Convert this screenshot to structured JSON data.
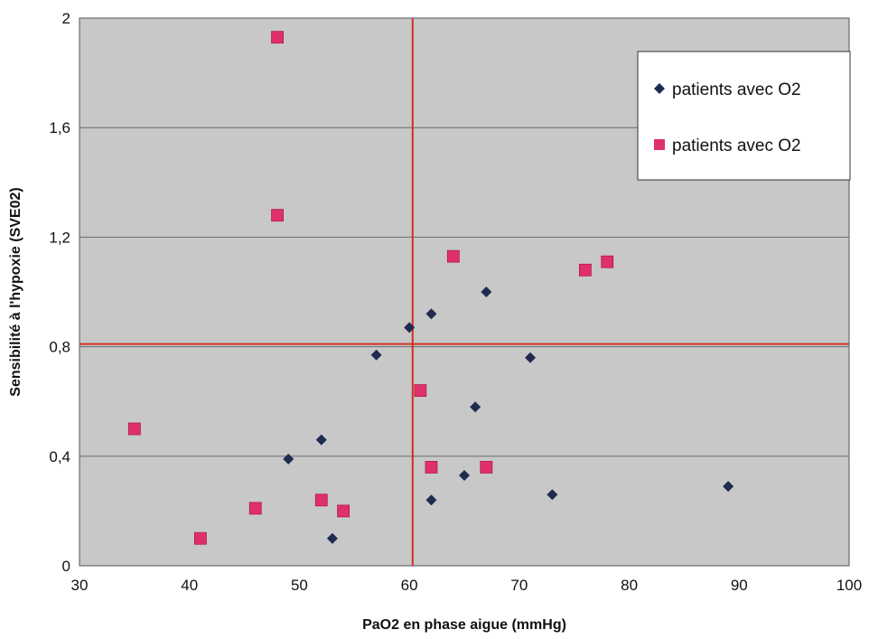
{
  "chart_data": {
    "type": "scatter",
    "xlabel": "PaO2 en phase aigue (mmHg)",
    "ylabel": "Sensibilité à l'hypoxie (SVE02)",
    "xlim": [
      30,
      100
    ],
    "ylim": [
      0,
      2
    ],
    "x_ticks": [
      "30",
      "40",
      "50",
      "60",
      "70",
      "80",
      "90",
      "100"
    ],
    "y_ticks": [
      "0",
      "0,4",
      "0,8",
      "1,2",
      "1,6",
      "2"
    ],
    "y_tick_values": [
      0,
      0.4,
      0.8,
      1.2,
      1.6,
      2
    ],
    "x_tick_values": [
      30,
      40,
      50,
      60,
      70,
      80,
      90,
      100
    ],
    "grid": "horizontal",
    "plot_background": "#c8c8c8",
    "legend_position": "top-right",
    "reference_lines": {
      "x": 60.3,
      "y": 0.81,
      "color": "#d03020"
    },
    "series": [
      {
        "name": "patients avec O2",
        "marker": "diamond",
        "color": "#1f2b50",
        "points": [
          {
            "x": 49,
            "y": 0.39
          },
          {
            "x": 52,
            "y": 0.46
          },
          {
            "x": 53,
            "y": 0.1
          },
          {
            "x": 57,
            "y": 0.77
          },
          {
            "x": 60,
            "y": 0.87
          },
          {
            "x": 62,
            "y": 0.92
          },
          {
            "x": 62,
            "y": 0.24
          },
          {
            "x": 65,
            "y": 0.33
          },
          {
            "x": 66,
            "y": 0.58
          },
          {
            "x": 67,
            "y": 1.0
          },
          {
            "x": 71,
            "y": 0.76
          },
          {
            "x": 73,
            "y": 0.26
          },
          {
            "x": 89,
            "y": 0.29
          }
        ]
      },
      {
        "name": "patients avec O2",
        "marker": "square",
        "color": "#e0306a",
        "points": [
          {
            "x": 35,
            "y": 0.5
          },
          {
            "x": 41,
            "y": 0.1
          },
          {
            "x": 46,
            "y": 0.21
          },
          {
            "x": 48,
            "y": 1.93
          },
          {
            "x": 48,
            "y": 1.28
          },
          {
            "x": 52,
            "y": 0.24
          },
          {
            "x": 54,
            "y": 0.2
          },
          {
            "x": 61,
            "y": 0.64
          },
          {
            "x": 62,
            "y": 0.36
          },
          {
            "x": 64,
            "y": 1.13
          },
          {
            "x": 67,
            "y": 0.36
          },
          {
            "x": 76,
            "y": 1.08
          },
          {
            "x": 78,
            "y": 1.11
          }
        ]
      }
    ]
  }
}
